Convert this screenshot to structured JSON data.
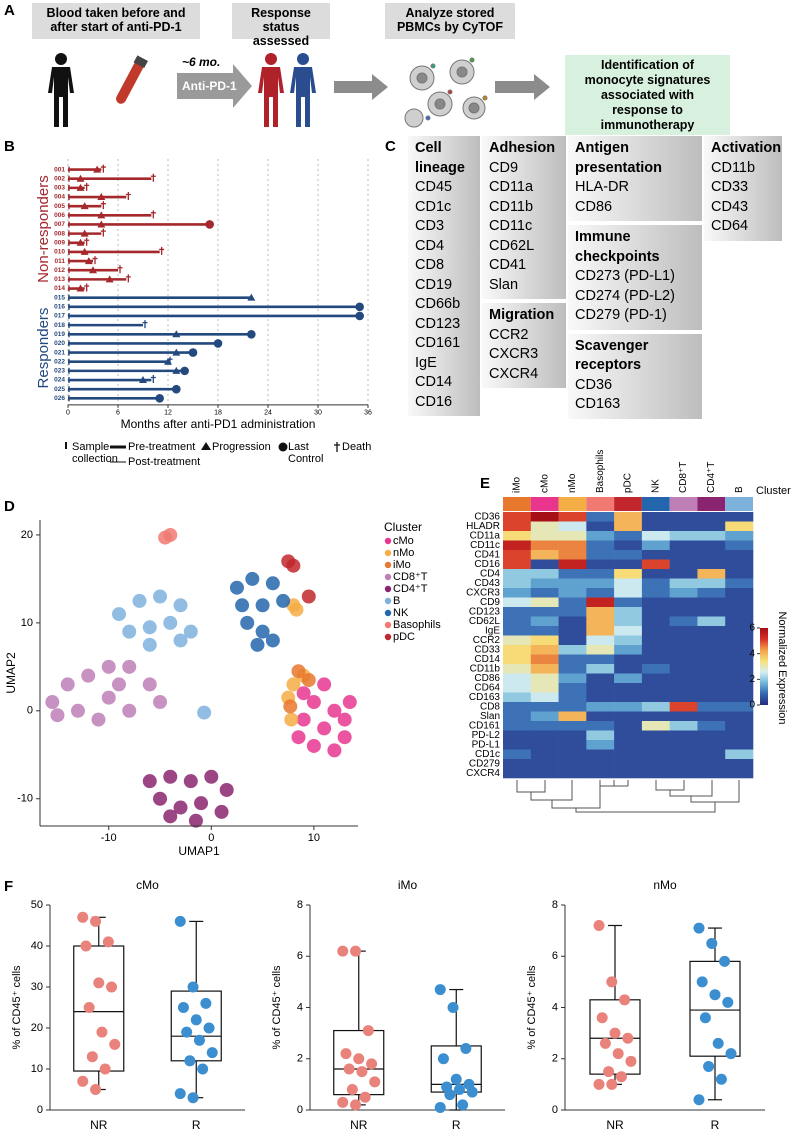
{
  "panels": [
    "A",
    "B",
    "C",
    "D",
    "E",
    "F"
  ],
  "panel_a": {
    "steps": [
      "Blood taken before and after start of anti-PD-1",
      "Response status assessed",
      "Analyze stored PBMCs by CyTOF"
    ],
    "interval": "~6 mo.",
    "treatment": "Anti-PD-1",
    "outcome": "Identification of monocyte signatures associated with response to immunotherapy"
  },
  "panel_c": {
    "columns": [
      [
        {
          "title": "Cell lineage",
          "items": [
            "CD45",
            "CD1c",
            "CD3",
            "CD4",
            "CD8",
            "CD19",
            "CD66b",
            "CD123",
            "CD161",
            "IgE",
            "CD14",
            "CD16"
          ]
        }
      ],
      [
        {
          "title": "Adhesion",
          "items": [
            "CD9",
            "CD11a",
            "CD11b",
            "CD11c",
            "CD62L",
            "CD41",
            "Slan"
          ]
        },
        {
          "title": "Migration",
          "items": [
            "CCR2",
            "CXCR3",
            "CXCR4"
          ]
        }
      ],
      [
        {
          "title": "Antigen presentation",
          "items": [
            "HLA-DR",
            "CD86"
          ]
        },
        {
          "title": "Immune checkpoints",
          "items": [
            "CD273 (PD-L1)",
            "CD274 (PD-L2)",
            "CD279 (PD-1)"
          ]
        },
        {
          "title": "Scavenger receptors",
          "items": [
            "CD36",
            "CD163"
          ]
        }
      ],
      [
        {
          "title": "Activation",
          "items": [
            "CD11b",
            "CD33",
            "CD43",
            "CD64"
          ]
        }
      ]
    ]
  },
  "chart_data": [
    {
      "type": "swimmer",
      "xlabel": "Months after anti-PD1 administration",
      "xlim": [
        0,
        36
      ],
      "xticks": [
        0,
        6,
        12,
        18,
        24,
        30,
        36
      ],
      "grid": true,
      "legend": [
        "Sample collection",
        "Pre-treatment",
        "Post-treatment",
        "Progression",
        "Last Control",
        "Death"
      ],
      "series": [
        {
          "name": "Non-responders",
          "color": "#a5282c",
          "ids": [
            "001",
            "002",
            "003",
            "004",
            "005",
            "006",
            "007",
            "008",
            "009",
            "010",
            "011",
            "012",
            "013",
            "014"
          ],
          "months": [
            4,
            10,
            2,
            7,
            4,
            10,
            17,
            4,
            2,
            11,
            3,
            6,
            7,
            2
          ],
          "progression": [
            3.5,
            1.5,
            1.5,
            4,
            2,
            4,
            4,
            2,
            1.5,
            2,
            2.5,
            3,
            5,
            1.5
          ],
          "end": [
            "Death",
            "Death",
            "Death",
            "Death",
            "Death",
            "Death",
            "Last Control",
            "Death",
            "Death",
            "Death",
            "Death",
            "Death",
            "Death",
            "Death"
          ]
        },
        {
          "name": "Responders",
          "color": "#23497f",
          "ids": [
            "015",
            "016",
            "017",
            "018",
            "019",
            "020",
            "021",
            "022",
            "023",
            "024",
            "025",
            "026"
          ],
          "months": [
            22,
            35,
            35,
            9,
            22,
            18,
            15,
            12,
            14,
            10,
            13,
            11
          ],
          "progression": [
            22,
            null,
            null,
            null,
            13,
            null,
            13,
            12,
            13,
            9,
            null,
            null
          ],
          "end": [
            null,
            "Last Control",
            "Last Control",
            "Death",
            "Last Control",
            "Last Control",
            "Last Control",
            "Death",
            "Last Control",
            "Death",
            "Last Control",
            "Last Control"
          ]
        }
      ]
    },
    {
      "type": "scatter",
      "xlabel": "UMAP1",
      "ylabel": "UMAP2",
      "xlim": [
        -16.7,
        14.3
      ],
      "ylim": [
        -13.1,
        21.7
      ],
      "xticks": [
        -10,
        0,
        10
      ],
      "yticks": [
        -10,
        0,
        10,
        20
      ],
      "legend_title": "Cluster",
      "series": [
        {
          "name": "cMo",
          "color": "#e8368f",
          "x": [
            9,
            10,
            12,
            13,
            9,
            11,
            13,
            10,
            12,
            8.5,
            11,
            13.5
          ],
          "y": [
            2,
            1,
            0,
            -1,
            -1,
            -2,
            -3,
            -4,
            -4.5,
            -3,
            3,
            1
          ]
        },
        {
          "name": "nMo",
          "color": "#f5ad45",
          "x": [
            8,
            9,
            7.5,
            8,
            8.3,
            7.8
          ],
          "y": [
            3,
            4,
            1.5,
            12,
            11.5,
            -1
          ]
        },
        {
          "name": "iMo",
          "color": "#e8782e",
          "x": [
            8.5,
            9.5,
            7.7
          ],
          "y": [
            4.5,
            3.5,
            0.5
          ]
        },
        {
          "name": "CD8⁺T",
          "color": "#bd7fb6",
          "x": [
            -15.5,
            -14,
            -12,
            -10,
            -8,
            -6,
            -10,
            -13,
            -8,
            -5,
            -11,
            -15,
            -9
          ],
          "y": [
            1,
            3,
            4,
            5,
            5,
            3,
            1.5,
            0,
            0,
            1,
            -1,
            -0.5,
            3
          ]
        },
        {
          "name": "CD4⁺T",
          "color": "#8a2470",
          "x": [
            -6,
            -4,
            -2,
            0,
            1.5,
            -5,
            -3,
            -1,
            1,
            -4,
            -1.5
          ],
          "y": [
            -8,
            -7.5,
            -8,
            -7.5,
            -9,
            -10,
            -11,
            -10.5,
            -11.5,
            -12,
            -12.5
          ]
        },
        {
          "name": "B",
          "color": "#7fb1dd",
          "x": [
            -9,
            -7,
            -5,
            -3,
            -8,
            -6,
            -4,
            -2,
            -6,
            -3,
            -0.7
          ],
          "y": [
            11,
            12.5,
            13,
            12,
            9,
            9.5,
            10,
            9,
            7.5,
            8,
            -0.2
          ]
        },
        {
          "name": "NK",
          "color": "#2466ad",
          "x": [
            2.5,
            4,
            6,
            3,
            5,
            7,
            3.5,
            5,
            4.5,
            6
          ],
          "y": [
            14,
            15,
            14.5,
            12,
            12,
            12.5,
            10,
            9,
            7.5,
            8
          ]
        },
        {
          "name": "Basophils",
          "color": "#f07a72",
          "x": [
            -4.5,
            -4
          ],
          "y": [
            19.7,
            20
          ]
        },
        {
          "name": "pDC",
          "color": "#c1272d",
          "x": [
            7.5,
            8,
            9.5
          ],
          "y": [
            17,
            16.5,
            13
          ]
        }
      ]
    },
    {
      "type": "heatmap",
      "columns": [
        "iMo",
        "cMo",
        "nMo",
        "Basophils",
        "pDC",
        "NK",
        "CD8⁺T",
        "CD4⁺T",
        "B"
      ],
      "column_colors": [
        "#e8782e",
        "#e8368f",
        "#f5ad45",
        "#f07a72",
        "#c1272d",
        "#2466ad",
        "#bd7fb6",
        "#8a2470",
        "#7fb1dd"
      ],
      "column_title": "Cluster",
      "rows": [
        "CD36",
        "HLADR",
        "CD11a",
        "CD11c",
        "CD41",
        "CD16",
        "CD4",
        "CD43",
        "CXCR3",
        "CD9",
        "CD123",
        "CD62L",
        "IgE",
        "CCR2",
        "CD33",
        "CD14",
        "CD11b",
        "CD86",
        "CD64",
        "CD163",
        "CD8",
        "Slan",
        "CD161",
        "PD-L2",
        "PD-L1",
        "CD1c",
        "CD279",
        "CXCR4"
      ],
      "values": [
        [
          5,
          6,
          5,
          1,
          4,
          0.5,
          0.5,
          0.5,
          0.5
        ],
        [
          5,
          3,
          2.5,
          0.5,
          4,
          0.5,
          0.5,
          0.5,
          3.5
        ],
        [
          3.5,
          3,
          3,
          1.5,
          1,
          2.5,
          2,
          2,
          1.5
        ],
        [
          5.5,
          4.5,
          4.5,
          1,
          0.5,
          1.5,
          0.5,
          0.5,
          1
        ],
        [
          5,
          4,
          4.5,
          1,
          1,
          0.5,
          0.5,
          0.5,
          0.5
        ],
        [
          5,
          0.5,
          5.5,
          0.5,
          0.5,
          5,
          0.5,
          0.5,
          0.5
        ],
        [
          2,
          2,
          1,
          1,
          3.5,
          0.5,
          0.5,
          4,
          0.5
        ],
        [
          2,
          1.5,
          1.5,
          1.5,
          2.5,
          1,
          2,
          2,
          1
        ],
        [
          1.5,
          1,
          1.5,
          1,
          2.5,
          1,
          1.5,
          1,
          0.5
        ],
        [
          2.5,
          3,
          1,
          5.5,
          1,
          0.5,
          0.5,
          0.5,
          0.5
        ],
        [
          1,
          1,
          1,
          4,
          2,
          0.5,
          0.5,
          0.5,
          0.5
        ],
        [
          1,
          1.5,
          0.5,
          4,
          2,
          0.5,
          1,
          2,
          0.5
        ],
        [
          1,
          1,
          0.5,
          4,
          2.5,
          0.5,
          0.5,
          0.5,
          0.5
        ],
        [
          3,
          3.5,
          0.5,
          2.5,
          2,
          0.5,
          0.5,
          0.5,
          0.5
        ],
        [
          3.5,
          4,
          2,
          3,
          1.5,
          0.5,
          0.5,
          0.5,
          0.5
        ],
        [
          3.5,
          4.5,
          1,
          1,
          0.5,
          0.5,
          0.5,
          0.5,
          0.5
        ],
        [
          3,
          4,
          1,
          2,
          0.5,
          1,
          0.5,
          0.5,
          0.5
        ],
        [
          2.5,
          3,
          1.5,
          0.5,
          1.5,
          0.5,
          0.5,
          0.5,
          0.5
        ],
        [
          2.5,
          3,
          1,
          0.5,
          0.5,
          0.5,
          0.5,
          0.5,
          0.5
        ],
        [
          2,
          2.5,
          1,
          0.5,
          0.5,
          0.5,
          0.5,
          0.5,
          0.5
        ],
        [
          1,
          1,
          1,
          1.5,
          1.5,
          2,
          5,
          1,
          1
        ],
        [
          1,
          1.5,
          4,
          0.5,
          0.5,
          0.5,
          0.5,
          0.5,
          0.5
        ],
        [
          1,
          1,
          1,
          1,
          0.5,
          3,
          2,
          1,
          0.5
        ],
        [
          0.5,
          0.5,
          0.5,
          2,
          0.5,
          0.5,
          0.5,
          0.5,
          0.5
        ],
        [
          0.5,
          0.5,
          0.5,
          1.5,
          0.5,
          0.5,
          0.5,
          0.5,
          0.5
        ],
        [
          1,
          0.5,
          0.5,
          0.5,
          0.5,
          0.5,
          0.5,
          0.5,
          2
        ],
        [
          0.5,
          0.5,
          0.5,
          0.5,
          0.5,
          0.5,
          0.5,
          0.5,
          0.5
        ],
        [
          0.5,
          0.5,
          0.5,
          0.5,
          0.5,
          0.5,
          0.5,
          0.5,
          0.5
        ]
      ],
      "zlim": [
        0,
        6
      ],
      "zticks": [
        0,
        2,
        4,
        6
      ],
      "colorbar_label": "Normalized Expression",
      "colorscale": [
        "#2a2b7f",
        "#3465b0",
        "#6fb6d9",
        "#d6eef2",
        "#f6e07a",
        "#f3a04a",
        "#d73027",
        "#a50f15"
      ]
    },
    {
      "type": "box",
      "title": "cMo",
      "ylabel": "% of CD45⁺ cells",
      "categories": [
        "NR",
        "R"
      ],
      "ylim": [
        0,
        50
      ],
      "yticks": [
        0,
        10,
        20,
        30,
        40,
        50
      ],
      "boxes": [
        {
          "color": "#e9827b",
          "min": 5,
          "q1": 9.5,
          "median": 24,
          "q3": 40,
          "max": 47,
          "points": [
            47,
            46,
            41,
            40,
            31,
            30,
            25,
            19,
            16,
            13,
            10,
            7,
            5
          ]
        },
        {
          "color": "#3b8fd0",
          "min": 3,
          "q1": 12,
          "median": 18,
          "q3": 29,
          "max": 46,
          "points": [
            46,
            30,
            26,
            25,
            22,
            20,
            19,
            17,
            14,
            12,
            10,
            4,
            3
          ]
        }
      ]
    },
    {
      "type": "box",
      "title": "iMo",
      "ylabel": "% of CD45⁺ cells",
      "categories": [
        "NR",
        "R"
      ],
      "ylim": [
        0,
        8
      ],
      "yticks": [
        0,
        2,
        4,
        6,
        8
      ],
      "boxes": [
        {
          "color": "#e9827b",
          "min": 0.2,
          "q1": 0.6,
          "median": 1.6,
          "q3": 3.1,
          "max": 6.2,
          "points": [
            6.2,
            6.2,
            3.1,
            2.2,
            2.0,
            1.8,
            1.6,
            1.5,
            1.1,
            0.8,
            0.5,
            0.3,
            0.2
          ]
        },
        {
          "color": "#3b8fd0",
          "min": 0,
          "q1": 0.7,
          "median": 1.0,
          "q3": 2.5,
          "max": 4.7,
          "points": [
            4.7,
            4.0,
            2.4,
            2.0,
            1.2,
            1.0,
            0.9,
            0.8,
            0.7,
            0.6,
            0.2,
            0.1
          ]
        }
      ]
    },
    {
      "type": "box",
      "title": "nMo",
      "ylabel": "% of CD45⁺ cells",
      "categories": [
        "NR",
        "R"
      ],
      "ylim": [
        0,
        8
      ],
      "yticks": [
        0,
        2,
        4,
        6,
        8
      ],
      "boxes": [
        {
          "color": "#e9827b",
          "min": 1,
          "q1": 1.4,
          "median": 2.8,
          "q3": 4.3,
          "max": 7.2,
          "points": [
            7.2,
            5.0,
            4.3,
            3.6,
            3.0,
            2.8,
            2.6,
            2.2,
            1.9,
            1.5,
            1.3,
            1.0,
            1.0
          ]
        },
        {
          "color": "#3b8fd0",
          "min": 0.4,
          "q1": 2.1,
          "median": 3.9,
          "q3": 5.8,
          "max": 7.1,
          "points": [
            7.1,
            6.5,
            5.8,
            5.0,
            4.5,
            4.2,
            3.6,
            2.6,
            2.2,
            1.7,
            1.2,
            0.4
          ]
        }
      ]
    }
  ]
}
